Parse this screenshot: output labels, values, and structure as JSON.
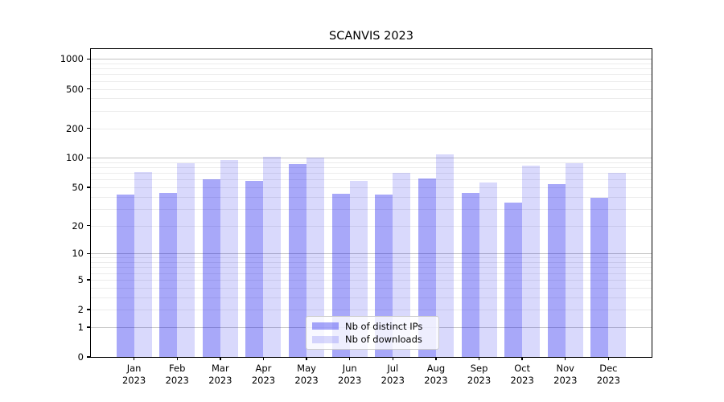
{
  "title": "SCANVIS 2023",
  "chart_data": {
    "type": "bar",
    "title": "SCANVIS 2023",
    "categories": [
      "Jan 2023",
      "Feb 2023",
      "Mar 2023",
      "Apr 2023",
      "May 2023",
      "Jun 2023",
      "Jul 2023",
      "Aug 2023",
      "Sep 2023",
      "Oct 2023",
      "Nov 2023",
      "Dec 2023"
    ],
    "series": [
      {
        "name": "Nb of distinct IPs",
        "color": "rgba(0,0,238,0.34)",
        "values": [
          42,
          44,
          61,
          58,
          87,
          43,
          42,
          62,
          44,
          35,
          54,
          39
        ]
      },
      {
        "name": "Nb of downloads",
        "color": "rgba(0,0,238,0.15)",
        "values": [
          72,
          88,
          95,
          102,
          101,
          58,
          70,
          108,
          56,
          83,
          88,
          71
        ]
      }
    ],
    "yscale": "log1p",
    "y_ticks": [
      0,
      1,
      2,
      5,
      10,
      20,
      50,
      100,
      200,
      500,
      1000
    ],
    "ylim": [
      0,
      1260
    ],
    "grid": {
      "major_lines": [
        1,
        10,
        100,
        1000
      ],
      "minor_lines": "2-9 per decade"
    },
    "legend_position": "lower-center",
    "xlabel": "",
    "ylabel": ""
  },
  "legend": {
    "items": [
      "Nb of distinct IPs",
      "Nb of downloads"
    ]
  },
  "colors": {
    "ips_bar": "rgba(0,0,238,0.34)",
    "downloads_bar": "rgba(0,0,238,0.15)",
    "major_grid": "#c3c3c3",
    "minor_grid": "#ececec",
    "spine": "#000000",
    "background": "#ffffff"
  }
}
